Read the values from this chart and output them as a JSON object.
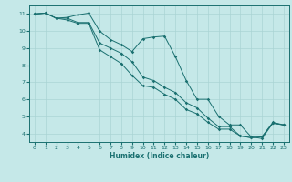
{
  "title": "",
  "xlabel": "Humidex (Indice chaleur)",
  "ylabel": "",
  "xlim": [
    -0.5,
    23.5
  ],
  "ylim": [
    3.5,
    11.5
  ],
  "yticks": [
    4,
    5,
    6,
    7,
    8,
    9,
    10,
    11
  ],
  "xticks": [
    0,
    1,
    2,
    3,
    4,
    5,
    6,
    7,
    8,
    9,
    10,
    11,
    12,
    13,
    14,
    15,
    16,
    17,
    18,
    19,
    20,
    21,
    22,
    23
  ],
  "background_color": "#c5e8e8",
  "grid_color": "#aad4d4",
  "line_color": "#1a7070",
  "line1_x": [
    0,
    1,
    2,
    3,
    4,
    5,
    6,
    7,
    8,
    9,
    10,
    11,
    12,
    13,
    14,
    15,
    16,
    17,
    18,
    19,
    20,
    21,
    22,
    23
  ],
  "line1_y": [
    11.0,
    11.05,
    10.75,
    10.8,
    10.95,
    11.05,
    10.0,
    9.5,
    9.2,
    8.8,
    9.55,
    9.65,
    9.7,
    8.5,
    7.1,
    6.0,
    6.0,
    5.0,
    4.5,
    4.5,
    3.8,
    3.7,
    4.6,
    4.5
  ],
  "line2_x": [
    0,
    1,
    2,
    3,
    4,
    5,
    6,
    7,
    8,
    9,
    10,
    11,
    12,
    13,
    14,
    15,
    16,
    17,
    18,
    19,
    20,
    21,
    22,
    23
  ],
  "line2_y": [
    11.0,
    11.05,
    10.75,
    10.75,
    10.5,
    10.5,
    9.3,
    9.0,
    8.7,
    8.2,
    7.3,
    7.1,
    6.7,
    6.4,
    5.8,
    5.5,
    4.9,
    4.4,
    4.4,
    3.85,
    3.75,
    3.8,
    4.65,
    4.5
  ],
  "line3_x": [
    0,
    1,
    2,
    3,
    4,
    5,
    6,
    7,
    8,
    9,
    10,
    11,
    12,
    13,
    14,
    15,
    16,
    17,
    18,
    19,
    20,
    21,
    22,
    23
  ],
  "line3_y": [
    11.0,
    11.05,
    10.75,
    10.65,
    10.45,
    10.45,
    8.9,
    8.5,
    8.1,
    7.4,
    6.8,
    6.7,
    6.3,
    6.0,
    5.4,
    5.15,
    4.65,
    4.25,
    4.25,
    3.85,
    3.75,
    3.8,
    4.6,
    4.5
  ]
}
